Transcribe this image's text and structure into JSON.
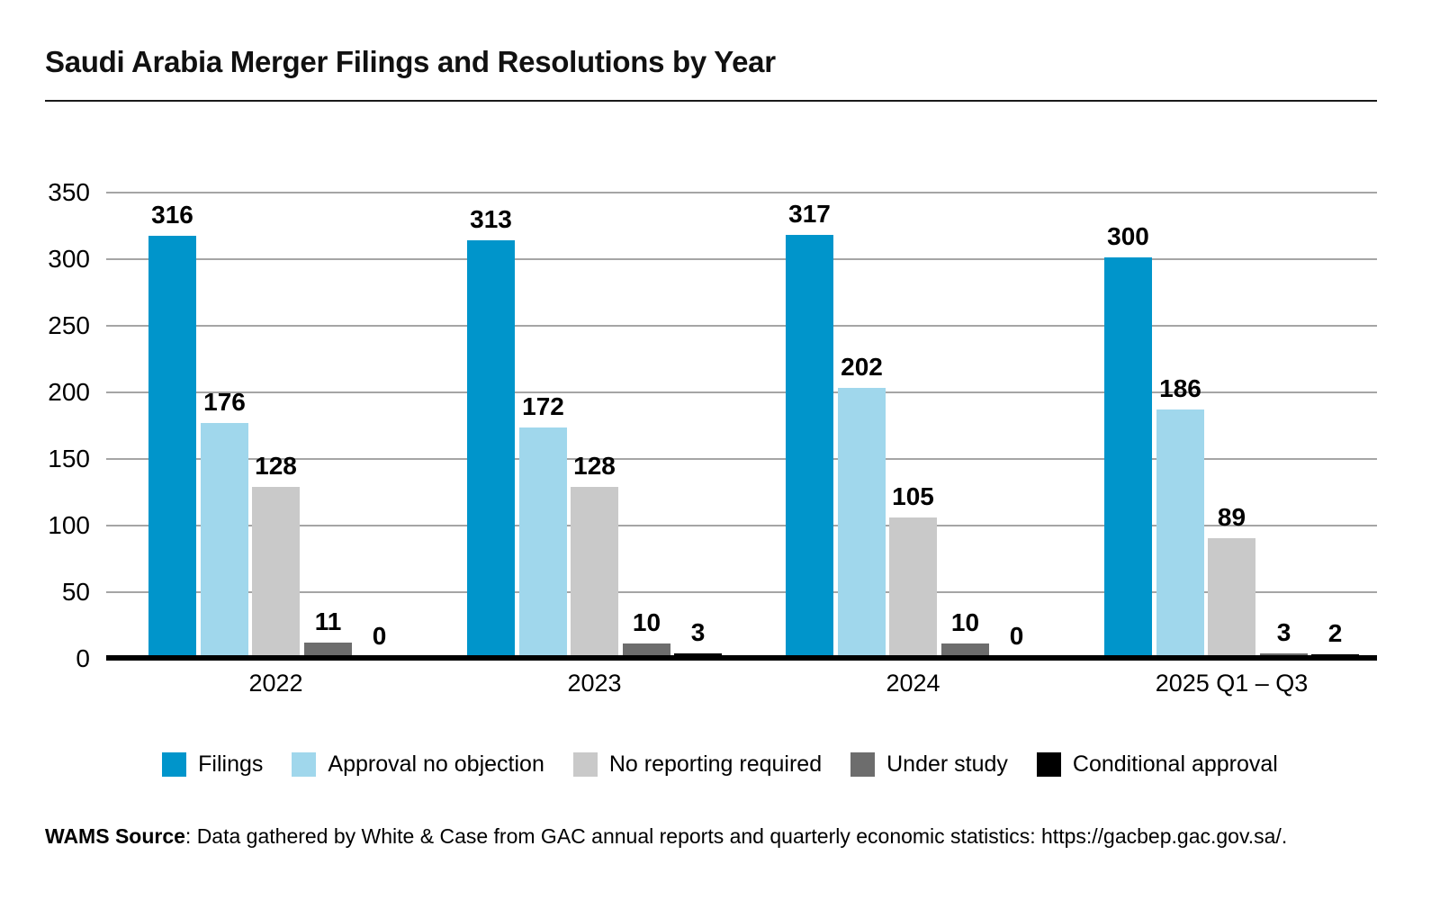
{
  "page": {
    "title": "Saudi Arabia Merger Filings and Resolutions by Year"
  },
  "chart_data": {
    "type": "bar",
    "title": "Saudi Arabia Merger Filings and Resolutions by Year",
    "categories": [
      "2022",
      "2023",
      "2024",
      "2025 Q1 – Q3"
    ],
    "series": [
      {
        "name": "Filings",
        "color": "#0095cb",
        "values": [
          316,
          313,
          317,
          300
        ]
      },
      {
        "name": "Approval no objection",
        "color": "#a0d7ec",
        "values": [
          176,
          172,
          202,
          186
        ]
      },
      {
        "name": "No reporting required",
        "color": "#c9c9c9",
        "values": [
          128,
          128,
          105,
          89
        ]
      },
      {
        "name": "Under study",
        "color": "#6d6d6d",
        "values": [
          11,
          10,
          10,
          3
        ]
      },
      {
        "name": "Conditional approval",
        "color": "#000000",
        "values": [
          0,
          3,
          0,
          2
        ]
      }
    ],
    "xlabel": "",
    "ylabel": "",
    "ylim": [
      0,
      350
    ],
    "yticks": [
      0,
      50,
      100,
      150,
      200,
      250,
      300,
      350
    ],
    "grid": true,
    "gridline_color": "#a5a5a5",
    "legend_position": "bottom",
    "value_labels": true
  },
  "footer": {
    "label_bold": "WAMS Source",
    "text": ": Data gathered by White & Case from GAC annual reports and quarterly economic statistics: https://gacbep.gac.gov.sa/."
  }
}
